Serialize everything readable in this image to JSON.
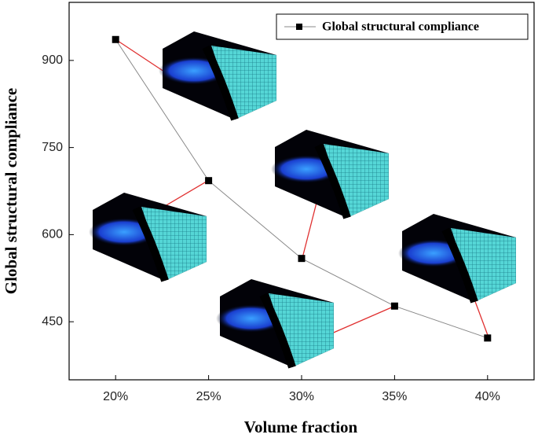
{
  "chart_data": {
    "type": "line",
    "x_label": "Volume fraction",
    "y_label": "Global structural compliance",
    "x": [
      20,
      25,
      30,
      35,
      40
    ],
    "series": [
      {
        "name": "Global structural compliance",
        "color": "#888888",
        "marker_color": "#000000",
        "values": [
          936,
          693,
          559,
          477,
          422
        ]
      }
    ],
    "xlim": [
      17.5,
      42.5
    ],
    "xticks": [
      {
        "value": 20,
        "label": "20%"
      },
      {
        "value": 25,
        "label": "25%"
      },
      {
        "value": 30,
        "label": "30%"
      },
      {
        "value": 35,
        "label": "35%"
      },
      {
        "value": 40,
        "label": "40%"
      }
    ],
    "ylim": [
      350,
      1000
    ],
    "yticks": [
      450,
      600,
      750,
      900
    ],
    "legend": "top-right"
  }
}
